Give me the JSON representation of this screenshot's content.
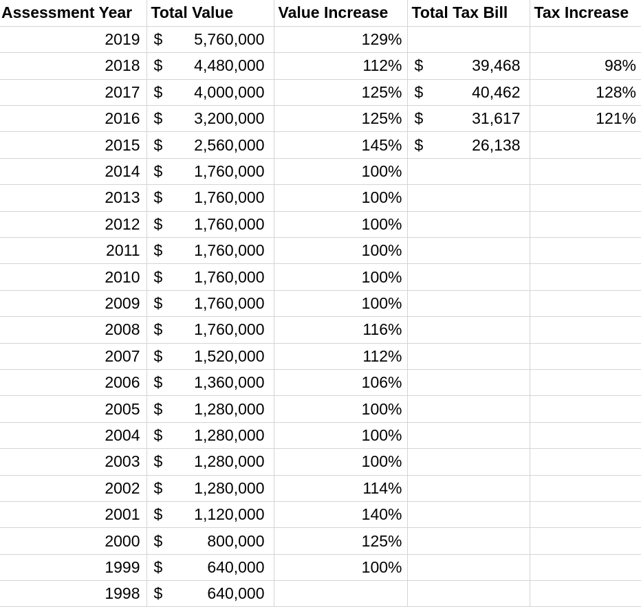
{
  "table": {
    "currency_symbol": "$",
    "columns": [
      {
        "label": "Assessment Year"
      },
      {
        "label": "Total Value"
      },
      {
        "label": "Value Increase"
      },
      {
        "label": "Total Tax Bill"
      },
      {
        "label": "Tax Increase"
      }
    ],
    "rows": [
      {
        "year": "2019",
        "total_value": "5,760,000",
        "value_increase": "129%",
        "total_tax_bill": "",
        "tax_increase": ""
      },
      {
        "year": "2018",
        "total_value": "4,480,000",
        "value_increase": "112%",
        "total_tax_bill": "39,468",
        "tax_increase": "98%"
      },
      {
        "year": "2017",
        "total_value": "4,000,000",
        "value_increase": "125%",
        "total_tax_bill": "40,462",
        "tax_increase": "128%"
      },
      {
        "year": "2016",
        "total_value": "3,200,000",
        "value_increase": "125%",
        "total_tax_bill": "31,617",
        "tax_increase": "121%"
      },
      {
        "year": "2015",
        "total_value": "2,560,000",
        "value_increase": "145%",
        "total_tax_bill": "26,138",
        "tax_increase": ""
      },
      {
        "year": "2014",
        "total_value": "1,760,000",
        "value_increase": "100%",
        "total_tax_bill": "",
        "tax_increase": ""
      },
      {
        "year": "2013",
        "total_value": "1,760,000",
        "value_increase": "100%",
        "total_tax_bill": "",
        "tax_increase": ""
      },
      {
        "year": "2012",
        "total_value": "1,760,000",
        "value_increase": "100%",
        "total_tax_bill": "",
        "tax_increase": ""
      },
      {
        "year": "2011",
        "total_value": "1,760,000",
        "value_increase": "100%",
        "total_tax_bill": "",
        "tax_increase": ""
      },
      {
        "year": "2010",
        "total_value": "1,760,000",
        "value_increase": "100%",
        "total_tax_bill": "",
        "tax_increase": ""
      },
      {
        "year": "2009",
        "total_value": "1,760,000",
        "value_increase": "100%",
        "total_tax_bill": "",
        "tax_increase": ""
      },
      {
        "year": "2008",
        "total_value": "1,760,000",
        "value_increase": "116%",
        "total_tax_bill": "",
        "tax_increase": ""
      },
      {
        "year": "2007",
        "total_value": "1,520,000",
        "value_increase": "112%",
        "total_tax_bill": "",
        "tax_increase": ""
      },
      {
        "year": "2006",
        "total_value": "1,360,000",
        "value_increase": "106%",
        "total_tax_bill": "",
        "tax_increase": ""
      },
      {
        "year": "2005",
        "total_value": "1,280,000",
        "value_increase": "100%",
        "total_tax_bill": "",
        "tax_increase": ""
      },
      {
        "year": "2004",
        "total_value": "1,280,000",
        "value_increase": "100%",
        "total_tax_bill": "",
        "tax_increase": ""
      },
      {
        "year": "2003",
        "total_value": "1,280,000",
        "value_increase": "100%",
        "total_tax_bill": "",
        "tax_increase": ""
      },
      {
        "year": "2002",
        "total_value": "1,280,000",
        "value_increase": "114%",
        "total_tax_bill": "",
        "tax_increase": ""
      },
      {
        "year": "2001",
        "total_value": "1,120,000",
        "value_increase": "140%",
        "total_tax_bill": "",
        "tax_increase": ""
      },
      {
        "year": "2000",
        "total_value": "800,000",
        "value_increase": "125%",
        "total_tax_bill": "",
        "tax_increase": ""
      },
      {
        "year": "1999",
        "total_value": "640,000",
        "value_increase": "100%",
        "total_tax_bill": "",
        "tax_increase": ""
      },
      {
        "year": "1998",
        "total_value": "640,000",
        "value_increase": "",
        "total_tax_bill": "",
        "tax_increase": ""
      }
    ]
  },
  "colors": {
    "gridline": "#d4d4d4",
    "text": "#000000",
    "background": "#ffffff"
  }
}
